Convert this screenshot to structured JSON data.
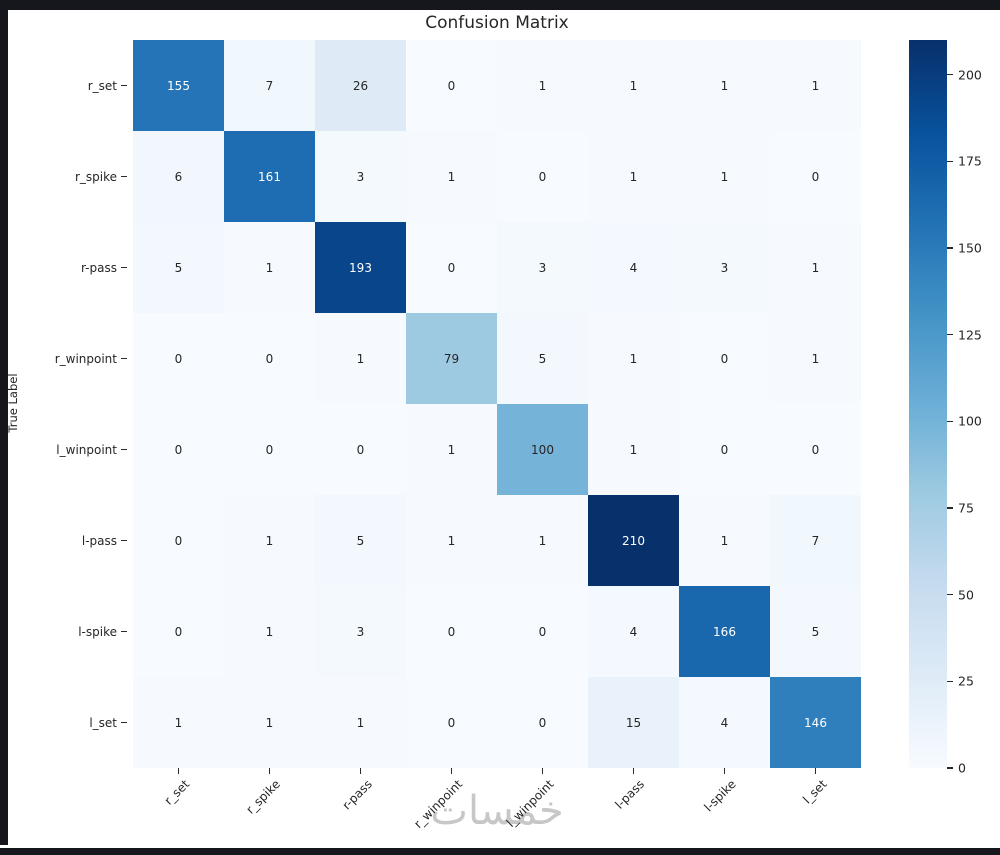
{
  "figure": {
    "watermark": "خمسات"
  },
  "chart_data": {
    "type": "heatmap",
    "title": "Confusion Matrix",
    "xlabel": "",
    "ylabel": "True Label",
    "categories": [
      "r_set",
      "r_spike",
      "r-pass",
      "r_winpoint",
      "l_winpoint",
      "l-pass",
      "l-spike",
      "l_set"
    ],
    "matrix": [
      [
        155,
        7,
        26,
        0,
        1,
        1,
        1,
        1
      ],
      [
        6,
        161,
        3,
        1,
        0,
        1,
        1,
        0
      ],
      [
        5,
        1,
        193,
        0,
        3,
        4,
        3,
        1
      ],
      [
        0,
        0,
        1,
        79,
        5,
        1,
        0,
        1
      ],
      [
        0,
        0,
        0,
        1,
        100,
        1,
        0,
        0
      ],
      [
        0,
        1,
        5,
        1,
        1,
        210,
        1,
        7
      ],
      [
        0,
        1,
        3,
        0,
        0,
        4,
        166,
        5
      ],
      [
        1,
        1,
        1,
        0,
        0,
        15,
        4,
        146
      ]
    ],
    "colormap": "Blues",
    "vmin": 0,
    "vmax": 210,
    "colorbar_ticks": [
      0,
      25,
      50,
      75,
      100,
      125,
      150,
      175,
      200
    ],
    "colormap_anchors": [
      "#f7fbff",
      "#deebf7",
      "#c6dbef",
      "#9ecae1",
      "#6baed6",
      "#4292c6",
      "#2171b5",
      "#08519c",
      "#08306b"
    ],
    "grid": false,
    "legend_position": "right-colorbar"
  },
  "colors": {
    "frame_bar": "#15171c",
    "axis_text": "#262626",
    "cell_text_dark": "#262626",
    "cell_text_light": "#ffffff",
    "watermark_gray": "#c1c1c1"
  }
}
